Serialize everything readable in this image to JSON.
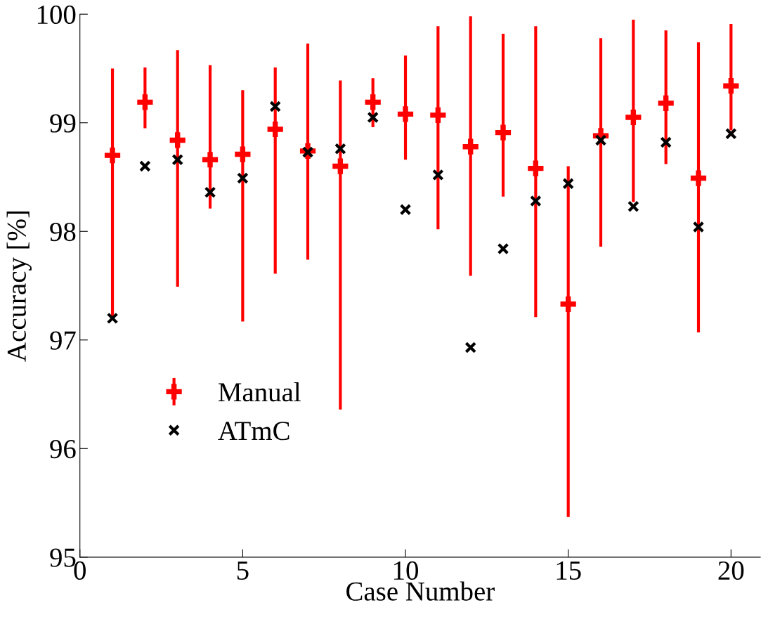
{
  "chart_data": {
    "type": "scatter",
    "xlabel": "Case Number",
    "ylabel": "Accuracy [%]",
    "x": [
      1,
      2,
      3,
      4,
      5,
      6,
      7,
      8,
      9,
      10,
      11,
      12,
      13,
      14,
      15,
      16,
      17,
      18,
      19,
      20
    ],
    "xlim": [
      0,
      20.9
    ],
    "xticks": [
      0,
      5,
      10,
      15,
      20
    ],
    "ylim": [
      95,
      100
    ],
    "yticks": [
      95,
      96,
      97,
      98,
      99,
      100
    ],
    "grid": false,
    "legend": "bottom left",
    "series": [
      {
        "name": "Manual",
        "color": "#ff0000",
        "marker": "cross",
        "values": [
          98.7,
          99.19,
          98.84,
          98.66,
          98.71,
          98.94,
          98.74,
          98.6,
          99.19,
          99.08,
          99.07,
          98.78,
          98.91,
          98.58,
          97.33,
          98.88,
          99.05,
          99.18,
          98.49,
          99.34
        ],
        "errors": [
          [
            97.2,
            99.5
          ],
          [
            98.95,
            99.51
          ],
          [
            97.49,
            99.67
          ],
          [
            98.21,
            99.53
          ],
          [
            97.17,
            99.3
          ],
          [
            97.61,
            99.51
          ],
          [
            97.74,
            99.73
          ],
          [
            96.36,
            99.39
          ],
          [
            98.96,
            99.41
          ],
          [
            98.66,
            99.62
          ],
          [
            98.02,
            99.89
          ],
          [
            97.59,
            99.98
          ],
          [
            98.32,
            99.82
          ],
          [
            97.21,
            99.89
          ],
          [
            95.37,
            98.6
          ],
          [
            97.86,
            99.78
          ],
          [
            98.27,
            99.95
          ],
          [
            98.62,
            99.85
          ],
          [
            97.07,
            99.74
          ],
          [
            98.93,
            99.91
          ]
        ]
      },
      {
        "name": "ATmC",
        "color": "#000000",
        "marker": "cross",
        "values": [
          97.2,
          98.6,
          98.66,
          98.36,
          98.49,
          99.15,
          98.73,
          98.76,
          99.05,
          98.2,
          98.52,
          96.93,
          97.84,
          98.28,
          98.44,
          98.84,
          98.23,
          98.82,
          98.04,
          98.9
        ]
      }
    ]
  }
}
